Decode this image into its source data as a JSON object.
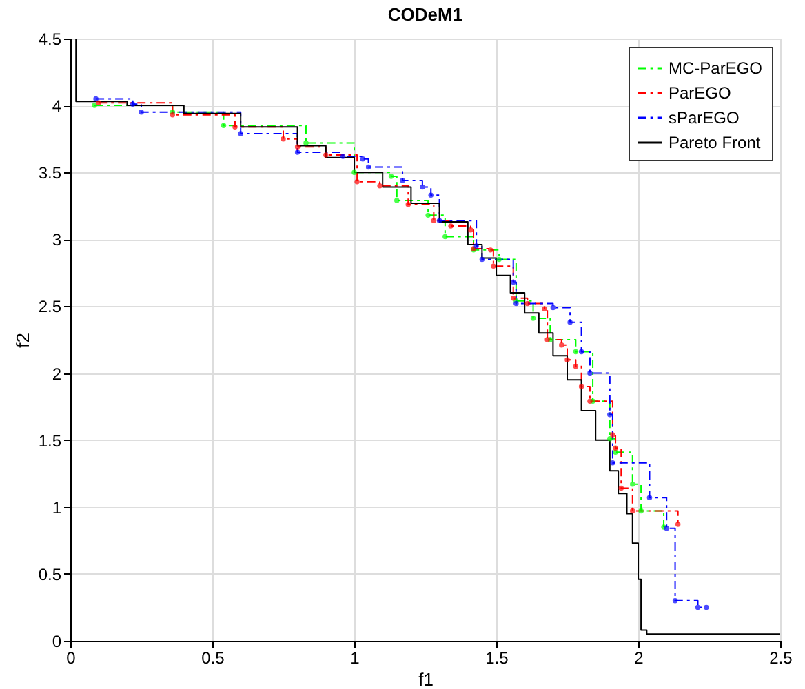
{
  "chart_data": {
    "type": "step",
    "title": "CODeM1",
    "xlabel": "f1",
    "ylabel": "f2",
    "xlim": [
      0,
      2.5
    ],
    "ylim": [
      0,
      4.5
    ],
    "xticks": [
      0,
      0.5,
      1,
      1.5,
      2,
      2.5
    ],
    "yticks": [
      0,
      0.5,
      1,
      1.5,
      2,
      2.5,
      3,
      3.5,
      4,
      4.5
    ],
    "grid": true,
    "legend": "top right",
    "series": [
      {
        "name": "MC-ParEGO",
        "color": "#00ff00",
        "line_style": "dashed",
        "marker": "circle",
        "x": [
          0.085,
          0.36,
          0.54,
          0.83,
          1.0,
          1.13,
          1.15,
          1.26,
          1.32,
          1.42,
          1.51,
          1.57,
          1.63,
          1.69,
          1.78,
          1.84,
          1.9,
          1.92,
          1.98,
          2.01,
          2.09
        ],
        "values": [
          4.0,
          3.95,
          3.85,
          3.72,
          3.5,
          3.47,
          3.29,
          3.18,
          3.02,
          2.92,
          2.85,
          2.54,
          2.41,
          2.25,
          2.16,
          1.79,
          1.51,
          1.41,
          1.17,
          0.97,
          0.85
        ]
      },
      {
        "name": "ParEGO",
        "color": "#ff0000",
        "line_style": "dashed",
        "marker": "circle",
        "x": [
          0.1,
          0.36,
          0.58,
          0.75,
          0.8,
          0.9,
          1.01,
          1.09,
          1.19,
          1.28,
          1.34,
          1.41,
          1.42,
          1.48,
          1.49,
          1.56,
          1.61,
          1.67,
          1.68,
          1.73,
          1.75,
          1.78,
          1.8,
          1.83,
          1.91,
          1.92,
          1.94,
          1.98,
          2.14
        ],
        "values": [
          4.02,
          3.93,
          3.84,
          3.75,
          3.69,
          3.63,
          3.43,
          3.4,
          3.26,
          3.14,
          3.1,
          3.07,
          2.93,
          2.92,
          2.8,
          2.56,
          2.52,
          2.48,
          2.25,
          2.21,
          2.1,
          2.05,
          1.9,
          1.79,
          1.54,
          1.44,
          1.14,
          0.97,
          0.87
        ]
      },
      {
        "name": "sParEGO",
        "color": "#0000ff",
        "line_style": "dashed",
        "marker": "circle",
        "x": [
          0.09,
          0.22,
          0.25,
          0.6,
          0.8,
          0.96,
          1.03,
          1.05,
          1.17,
          1.24,
          1.27,
          1.3,
          1.43,
          1.45,
          1.56,
          1.57,
          1.7,
          1.76,
          1.8,
          1.83,
          1.9,
          1.91,
          2.04,
          2.1,
          2.13,
          2.21,
          2.24
        ],
        "values": [
          4.05,
          4.01,
          3.95,
          3.79,
          3.65,
          3.62,
          3.6,
          3.54,
          3.44,
          3.39,
          3.33,
          3.14,
          2.95,
          2.85,
          2.68,
          2.52,
          2.49,
          2.38,
          2.16,
          2.0,
          1.69,
          1.33,
          1.07,
          0.84,
          0.3,
          0.25,
          0.25
        ]
      },
      {
        "name": "Pareto Front",
        "color": "#000000",
        "line_style": "solid",
        "marker": "none",
        "x": [
          0.02,
          0.02,
          0.2,
          0.4,
          0.6,
          0.8,
          0.9,
          1.0,
          1.1,
          1.2,
          1.3,
          1.4,
          1.45,
          1.5,
          1.55,
          1.6,
          1.65,
          1.7,
          1.75,
          1.8,
          1.85,
          1.9,
          1.93,
          1.96,
          1.98,
          2.0,
          2.01,
          2.03,
          2.5
        ],
        "values": [
          4.5,
          4.03,
          4.0,
          3.94,
          3.84,
          3.7,
          3.61,
          3.5,
          3.39,
          3.27,
          3.13,
          2.96,
          2.86,
          2.73,
          2.6,
          2.45,
          2.3,
          2.13,
          1.95,
          1.72,
          1.5,
          1.27,
          1.1,
          0.95,
          0.73,
          0.46,
          0.08,
          0.05,
          0.05
        ]
      }
    ]
  }
}
